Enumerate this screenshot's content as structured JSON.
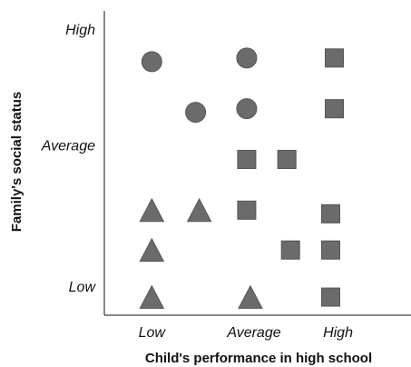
{
  "chart_data": {
    "type": "scatter",
    "xlabel": "Child's performance in high school",
    "ylabel": "Family's social status",
    "x_tick_labels": [
      "Low",
      "Average",
      "High"
    ],
    "y_tick_labels": [
      "High",
      "Average",
      "Low"
    ],
    "xlim": [
      0,
      8.4
    ],
    "ylim": [
      0,
      8.4
    ],
    "x_tick_values": [
      1.3,
      4.1,
      6.4
    ],
    "y_tick_values": [
      7.9,
      4.7,
      0.8
    ],
    "grid": false,
    "legend": false,
    "marker_color": "#6b6b6b",
    "series": [
      {
        "marker": "circle",
        "points": [
          {
            "x": 1.3,
            "y": 7.0
          },
          {
            "x": 2.5,
            "y": 5.6
          },
          {
            "x": 3.9,
            "y": 7.1
          },
          {
            "x": 3.9,
            "y": 5.7
          }
        ]
      },
      {
        "marker": "square",
        "points": [
          {
            "x": 6.3,
            "y": 7.1
          },
          {
            "x": 6.3,
            "y": 5.7
          },
          {
            "x": 3.9,
            "y": 4.3
          },
          {
            "x": 5.0,
            "y": 4.3
          },
          {
            "x": 3.9,
            "y": 2.9
          },
          {
            "x": 6.2,
            "y": 2.8
          },
          {
            "x": 5.1,
            "y": 1.8
          },
          {
            "x": 6.2,
            "y": 1.8
          },
          {
            "x": 6.2,
            "y": 0.5
          }
        ]
      },
      {
        "marker": "triangle",
        "points": [
          {
            "x": 1.3,
            "y": 2.9
          },
          {
            "x": 2.6,
            "y": 2.9
          },
          {
            "x": 1.3,
            "y": 1.8
          },
          {
            "x": 1.3,
            "y": 0.5
          },
          {
            "x": 4.0,
            "y": 0.5
          }
        ]
      }
    ]
  }
}
